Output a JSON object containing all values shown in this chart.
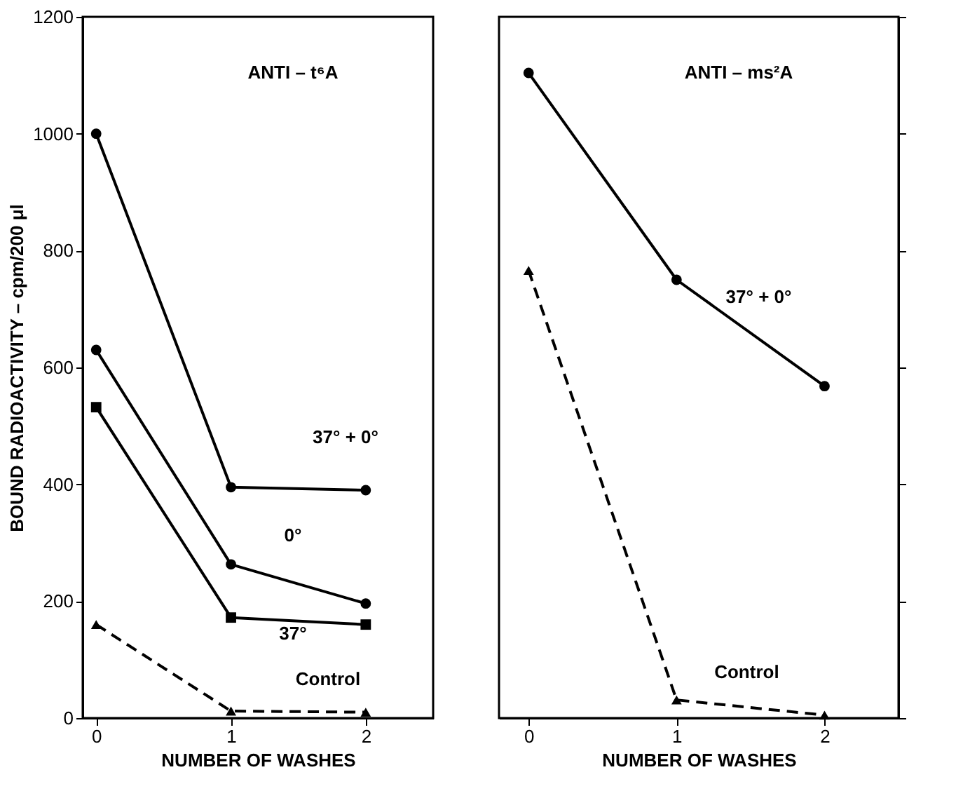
{
  "chart_data": [
    {
      "type": "line",
      "title": "ANTI – t⁶A",
      "xlabel": "NUMBER OF WASHES",
      "ylabel": "BOUND RADIOACTIVITY – cpm/200 μl",
      "x": [
        0,
        1,
        2
      ],
      "xlim": [
        -0.1,
        2.5
      ],
      "xticks": [
        0,
        1,
        2
      ],
      "ylim": [
        0,
        1200
      ],
      "yticks": [
        0,
        200,
        400,
        600,
        800,
        1000,
        1200
      ],
      "grid": false,
      "series": [
        {
          "color": "#000000",
          "values": [
            1000,
            395,
            390
          ],
          "marker": "circle",
          "line_style": "solid"
        },
        {
          "color": "#000000",
          "values": [
            630,
            263,
            196
          ],
          "marker": "circle",
          "line_style": "solid"
        },
        {
          "color": "#000000",
          "values": [
            532,
            172,
            160
          ],
          "marker": "square",
          "line_style": "solid"
        },
        {
          "color": "#000000",
          "values": [
            160,
            12,
            10
          ],
          "marker": "triangle",
          "line_style": "dashed"
        }
      ],
      "annotations": [
        "37° + 0°",
        "0°",
        "37°",
        "Control"
      ]
    },
    {
      "type": "line",
      "title": "ANTI – ms²A",
      "xlabel": "NUMBER OF WASHES",
      "x": [
        0,
        1,
        2
      ],
      "xlim": [
        -0.2,
        2.5
      ],
      "xticks": [
        0,
        1,
        2
      ],
      "ylim": [
        0,
        1200
      ],
      "yticks": [
        0,
        200,
        400,
        600,
        800,
        1000,
        1200
      ],
      "tick_labels": "x",
      "grid": false,
      "series": [
        {
          "color": "#000000",
          "values": [
            1104,
            750,
            568
          ],
          "marker": "circle",
          "line_style": "solid"
        },
        {
          "color": "#000000",
          "values": [
            766,
            31,
            5
          ],
          "marker": "triangle",
          "line_style": "dashed"
        }
      ],
      "annotations": [
        "37° + 0°",
        "Control"
      ]
    }
  ]
}
